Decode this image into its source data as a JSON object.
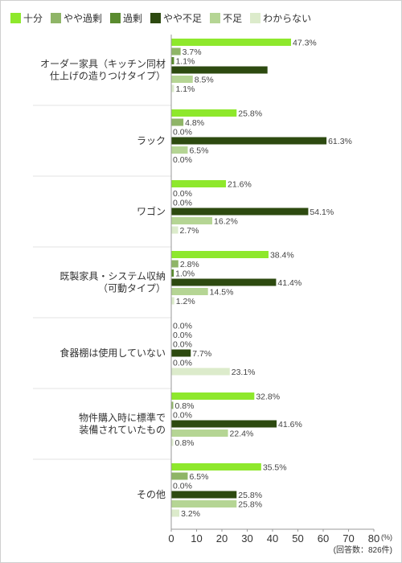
{
  "chart_data": {
    "type": "bar",
    "orientation": "horizontal",
    "legend_position": "top-left",
    "grid": false,
    "unit_label": "(%)",
    "note": "(回答数：826件)",
    "xlim": [
      0,
      80
    ],
    "xticks": [
      0,
      10,
      20,
      30,
      40,
      50,
      60,
      70,
      80
    ],
    "series": [
      {
        "name": "十分",
        "color": "#8ee82c"
      },
      {
        "name": "やや過剰",
        "color": "#8fb567"
      },
      {
        "name": "過剰",
        "color": "#5a8b2f"
      },
      {
        "name": "やや不足",
        "color": "#2d4a10"
      },
      {
        "name": "不足",
        "color": "#b5d594"
      },
      {
        "name": "わからない",
        "color": "#dcebcb"
      }
    ],
    "categories": [
      {
        "label": [
          "オーダー家具（キッチン同材",
          "仕上げの造りつけタイプ）"
        ],
        "values": [
          47.3,
          3.7,
          1.1,
          38.0,
          8.5,
          1.1
        ],
        "value_labels": [
          "47.3%",
          "3.7%",
          "1.1%",
          "",
          "8.5%",
          "1.1%"
        ]
      },
      {
        "label": [
          "ラック"
        ],
        "values": [
          25.8,
          4.8,
          0.0,
          61.3,
          6.5,
          0.0
        ],
        "value_labels": [
          "25.8%",
          "4.8%",
          "0.0%",
          "61.3%",
          "6.5%",
          "0.0%"
        ]
      },
      {
        "label": [
          "ワゴン"
        ],
        "values": [
          21.6,
          0.0,
          0.0,
          54.1,
          16.2,
          2.7
        ],
        "value_labels": [
          "21.6%",
          "0.0%",
          "0.0%",
          "54.1%",
          "16.2%",
          "2.7%"
        ]
      },
      {
        "label": [
          "既製家具・システム収納",
          "（可動タイプ）"
        ],
        "values": [
          38.4,
          2.8,
          1.0,
          41.4,
          14.5,
          1.2
        ],
        "value_labels": [
          "38.4%",
          "2.8%",
          "1.0%",
          "41.4%",
          "14.5%",
          "1.2%"
        ]
      },
      {
        "label": [
          "食器棚は使用していない"
        ],
        "values": [
          0.0,
          0.0,
          0.0,
          7.7,
          0.0,
          23.1
        ],
        "value_labels": [
          "0.0%",
          "0.0%",
          "0.0%",
          "7.7%",
          "0.0%",
          "23.1%"
        ]
      },
      {
        "label": [
          "物件購入時に標準で",
          "装備されていたもの"
        ],
        "values": [
          32.8,
          0.8,
          0.0,
          41.6,
          22.4,
          0.8
        ],
        "value_labels": [
          "32.8%",
          "0.8%",
          "0.0%",
          "41.6%",
          "22.4%",
          "0.8%"
        ]
      },
      {
        "label": [
          "その他"
        ],
        "values": [
          35.5,
          6.5,
          0.0,
          25.8,
          25.8,
          3.2
        ],
        "value_labels": [
          "35.5%",
          "6.5%",
          "0.0%",
          "25.8%",
          "25.8%",
          "3.2%"
        ]
      }
    ]
  }
}
